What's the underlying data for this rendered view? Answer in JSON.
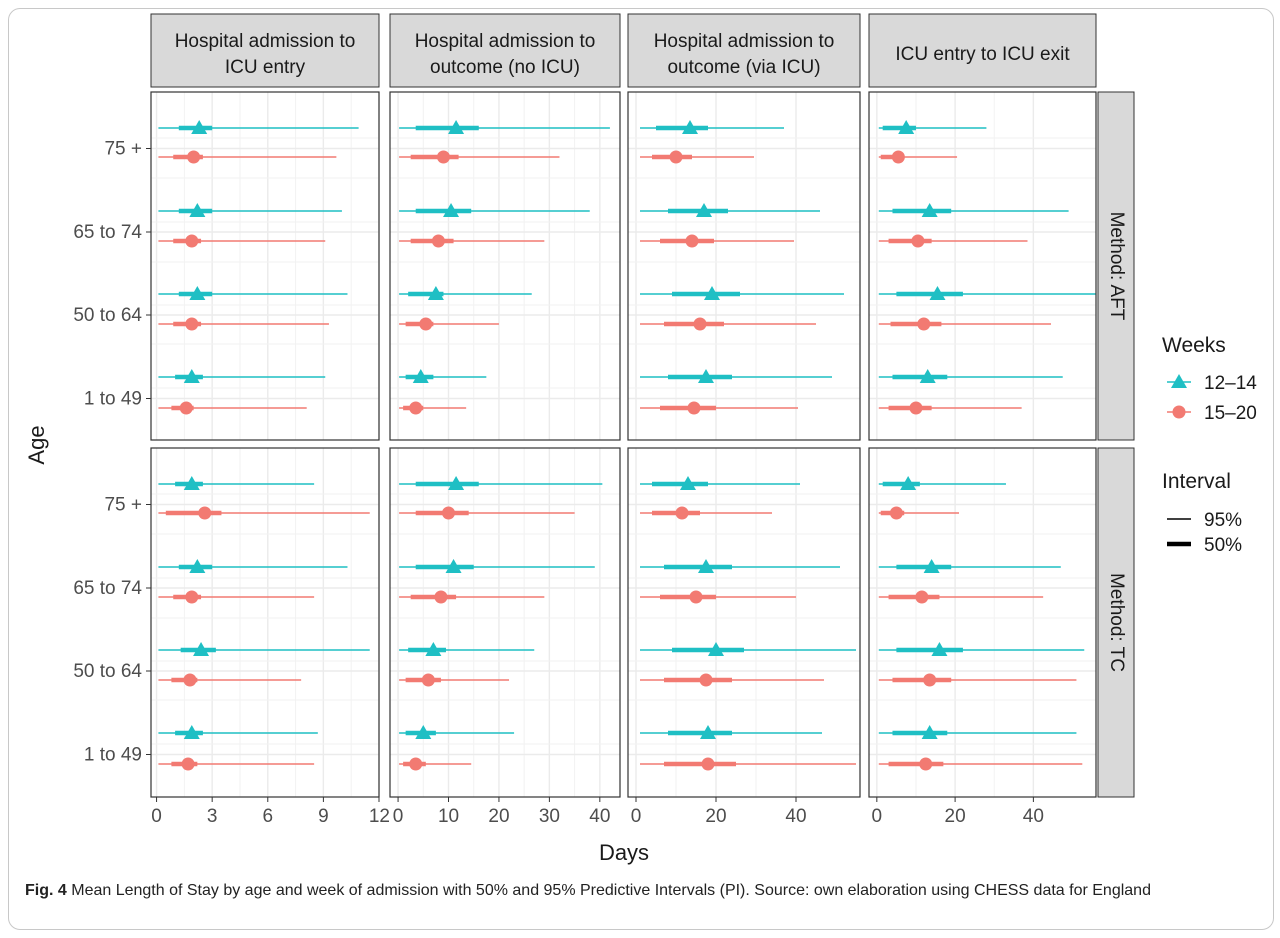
{
  "chart_data": {
    "type": "forest",
    "ylabel": "Age",
    "xlabel": "Days",
    "facet_columns": [
      {
        "label_line1": "Hospital admission to",
        "label_line2": "ICU entry",
        "xlim": [
          -0.3,
          12
        ],
        "ticks": [
          0,
          3,
          6,
          9,
          12
        ]
      },
      {
        "label_line1": "Hospital admission to",
        "label_line2": "outcome (no ICU)",
        "xlim": [
          -1.6,
          44
        ],
        "ticks": [
          0,
          10,
          20,
          30,
          40
        ]
      },
      {
        "label_line1": "Hospital admission to",
        "label_line2": "outcome (via ICU)",
        "xlim": [
          -2,
          56
        ],
        "ticks": [
          0,
          20,
          40
        ]
      },
      {
        "label_line1": "ICU entry to ICU exit",
        "label_line2": "",
        "xlim": [
          -2,
          56
        ],
        "ticks": [
          0,
          20,
          40
        ]
      }
    ],
    "facet_rows": [
      "Method: AFT",
      "Method: TC"
    ],
    "age_groups": [
      "75 +",
      "65 to 74",
      "50 to 64",
      "1 to 49"
    ],
    "legend": {
      "weeks_title": "Weeks",
      "weeks": [
        {
          "label": "12–14",
          "color": "#1fbfc4",
          "shape": "triangle"
        },
        {
          "label": "15–20",
          "color": "#f27a72",
          "shape": "circle"
        }
      ],
      "interval_title": "Interval",
      "intervals": [
        {
          "label": "95%",
          "type": "thin"
        },
        {
          "label": "50%",
          "type": "thick"
        }
      ]
    },
    "series": [
      {
        "name": "12–14",
        "rows": [
          [
            [
              [
                0.1,
                10.9,
                1.2,
                3.0,
                2.3
              ],
              [
                0.1,
                10.0,
                1.2,
                3.0,
                2.2
              ],
              [
                0.1,
                10.3,
                1.2,
                3.0,
                2.2
              ],
              [
                0.1,
                9.1,
                1.0,
                2.5,
                1.9
              ]
            ],
            [
              [
                0.2,
                42,
                3.5,
                16,
                11.5
              ],
              [
                0.2,
                38,
                3.5,
                14.5,
                10.5
              ],
              [
                0.2,
                26.5,
                2,
                9,
                7.5
              ],
              [
                0.2,
                17.5,
                1.5,
                7,
                4.5
              ]
            ],
            [
              [
                1,
                37,
                5,
                18,
                13.5
              ],
              [
                1,
                46,
                8,
                23,
                17
              ],
              [
                1,
                52,
                9,
                26,
                19
              ],
              [
                1,
                49,
                8,
                24,
                17.5
              ]
            ],
            [
              [
                0.5,
                28,
                1.5,
                10,
                7.5
              ],
              [
                0.5,
                49,
                4,
                19,
                13.5
              ],
              [
                0.5,
                56,
                5,
                22,
                15.5
              ],
              [
                0.5,
                47.5,
                4,
                18,
                13
              ]
            ]
          ],
          [
            [
              [
                0.1,
                8.5,
                1.0,
                2.5,
                1.9
              ],
              [
                0.1,
                10.3,
                1.2,
                3.0,
                2.2
              ],
              [
                0.1,
                11.5,
                1.3,
                3.2,
                2.4
              ],
              [
                0.1,
                8.7,
                1.0,
                2.5,
                1.9
              ]
            ],
            [
              [
                0.2,
                40.5,
                3.5,
                16,
                11.5
              ],
              [
                0.2,
                39,
                3.5,
                15,
                11
              ],
              [
                0.2,
                27,
                2,
                9.5,
                7
              ],
              [
                0.2,
                23,
                1.5,
                7.5,
                5
              ]
            ],
            [
              [
                1,
                41,
                4,
                18,
                13
              ],
              [
                1,
                51,
                7,
                24,
                17.5
              ],
              [
                1,
                55,
                9,
                27,
                20
              ],
              [
                1,
                46.5,
                8,
                24,
                18
              ]
            ],
            [
              [
                0.5,
                33,
                1.5,
                11,
                8
              ],
              [
                0.5,
                47,
                5,
                19,
                14
              ],
              [
                0.5,
                53,
                5,
                22,
                16
              ],
              [
                0.5,
                51,
                4,
                18,
                13.5
              ]
            ]
          ]
        ]
      },
      {
        "name": "15–20",
        "rows": [
          [
            [
              [
                0.1,
                9.7,
                0.9,
                2.5,
                2.0
              ],
              [
                0.1,
                9.1,
                0.9,
                2.4,
                1.9
              ],
              [
                0.1,
                9.3,
                0.9,
                2.4,
                1.9
              ],
              [
                0.1,
                8.1,
                0.8,
                2.0,
                1.6
              ]
            ],
            [
              [
                0.2,
                32,
                2.5,
                12,
                9
              ],
              [
                0.2,
                29,
                2.5,
                11,
                8
              ],
              [
                0.2,
                20,
                1.5,
                7,
                5.5
              ],
              [
                0.2,
                13.5,
                1,
                5,
                3.5
              ]
            ],
            [
              [
                1,
                29.5,
                4,
                14,
                10
              ],
              [
                1,
                39.5,
                6,
                19.5,
                14
              ],
              [
                1,
                45,
                7,
                22,
                16
              ],
              [
                1,
                40.5,
                6,
                20,
                14.5
              ]
            ],
            [
              [
                0.5,
                20.5,
                1,
                7,
                5.5
              ],
              [
                0.5,
                38.5,
                3,
                14,
                10.5
              ],
              [
                0.5,
                44.5,
                3.5,
                16.5,
                12
              ],
              [
                0.5,
                37,
                3,
                14,
                10
              ]
            ]
          ],
          [
            [
              [
                0.1,
                11.5,
                0.5,
                3.5,
                2.6
              ],
              [
                0.1,
                8.5,
                0.9,
                2.4,
                1.9
              ],
              [
                0.1,
                7.8,
                0.8,
                2.2,
                1.8
              ],
              [
                0.1,
                8.5,
                0.8,
                2.2,
                1.7
              ]
            ],
            [
              [
                0.2,
                35,
                3.5,
                14,
                10
              ],
              [
                0.2,
                29,
                2.5,
                11.5,
                8.5
              ],
              [
                0.2,
                22,
                1.5,
                8.5,
                6
              ],
              [
                0.2,
                14.5,
                1,
                5.5,
                3.5
              ]
            ],
            [
              [
                1,
                34,
                4,
                16,
                11.5
              ],
              [
                1,
                40,
                6,
                20,
                15
              ],
              [
                1,
                47,
                7,
                24,
                17.5
              ],
              [
                1,
                55,
                7,
                25,
                18
              ]
            ],
            [
              [
                0.5,
                21,
                1,
                7,
                5
              ],
              [
                0.5,
                42.5,
                3,
                16,
                11.5
              ],
              [
                0.5,
                51,
                4,
                19,
                13.5
              ],
              [
                0.5,
                52.5,
                3,
                17,
                12.5
              ]
            ]
          ]
        ]
      }
    ]
  },
  "caption": {
    "fig_label": "Fig. 4",
    "text": "Mean Length of Stay by age and week of admission with 50% and 95% Predictive Intervals (PI). Source: own elaboration using CHESS data for England"
  }
}
